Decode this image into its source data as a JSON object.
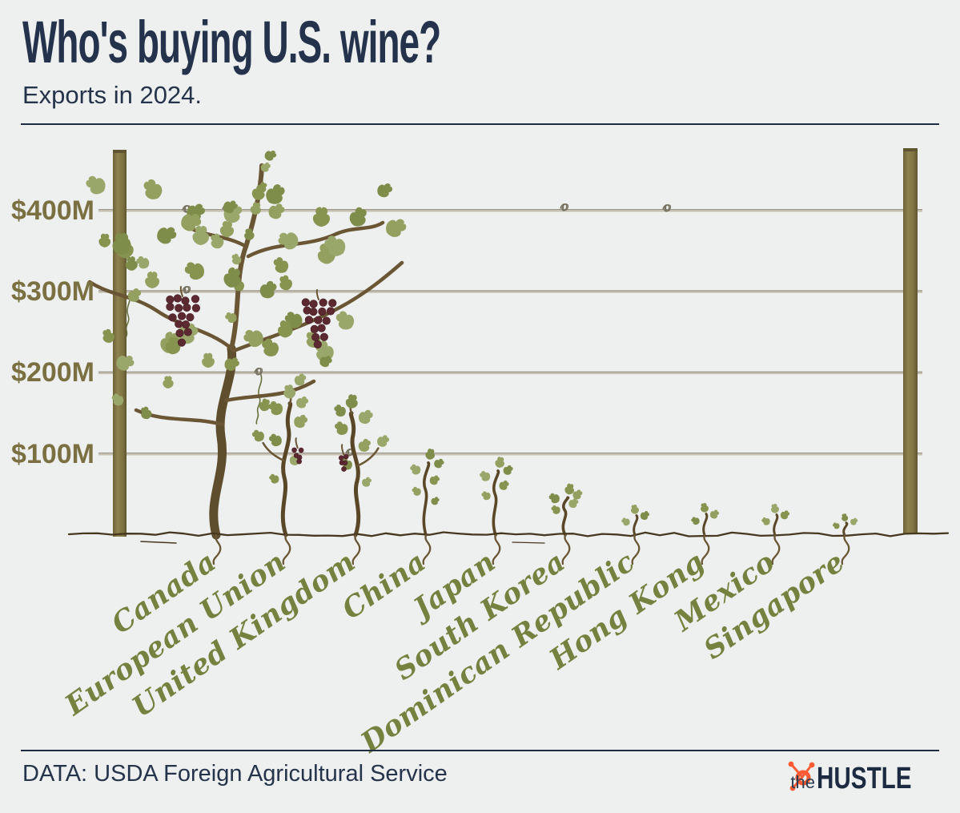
{
  "header": {
    "title": "Who's buying U.S. wine?",
    "subtitle": "Exports in 2024."
  },
  "footer": {
    "source": "DATA: USDA Foreign Agricultural Service",
    "brand_the": "the",
    "brand_name": "HUSTLE"
  },
  "colors": {
    "background": "#eef0ef",
    "navy_text": "#24324b",
    "olive_axis_label": "#7b7042",
    "script_label_green": "#75823f",
    "wire": "#c6c1b2",
    "wire_dark": "#8f897c",
    "tendril": "#76705f",
    "tendril_green": "#6a6f3e",
    "post_dark": "#6e6336",
    "post_mid": "#8d8150",
    "post_mid2": "#7c713f",
    "post_dark2": "#5f5530",
    "trunk": "#5f4e2d",
    "trunk2": "#5a4728",
    "branch": "#6a5634",
    "ground": "#46381f",
    "grape": "#5c2931",
    "grape_edge": "#471f26",
    "leaf_palette": [
      "#93a05f",
      "#869450",
      "#9aa76b",
      "#7e8d4a"
    ],
    "hubspot_orange": "#ff5c35"
  },
  "chart_data": {
    "type": "bar",
    "title": "Who's buying U.S. wine?",
    "subtitle": "Exports in 2024.",
    "style": "illustrated grapevines on a vineyard trellis; vine height encodes export value",
    "units": "USD millions",
    "values_estimated_from_gridlines": true,
    "categories": [
      "Canada",
      "European Union",
      "United Kingdom",
      "China",
      "Japan",
      "South Korea",
      "Dominican Republic",
      "Hong Kong",
      "Mexico",
      "Singapore"
    ],
    "values": [
      465,
      170,
      158,
      95,
      85,
      52,
      27,
      29,
      28,
      18
    ],
    "yticks": [
      "$400M",
      "$300M",
      "$200M",
      "$100M"
    ],
    "ytick_values": [
      400,
      300,
      200,
      100
    ],
    "ylim": [
      0,
      480
    ],
    "xlabel": "",
    "ylabel": "",
    "legend": "none",
    "grid": "horizontal wires at each $100M"
  }
}
